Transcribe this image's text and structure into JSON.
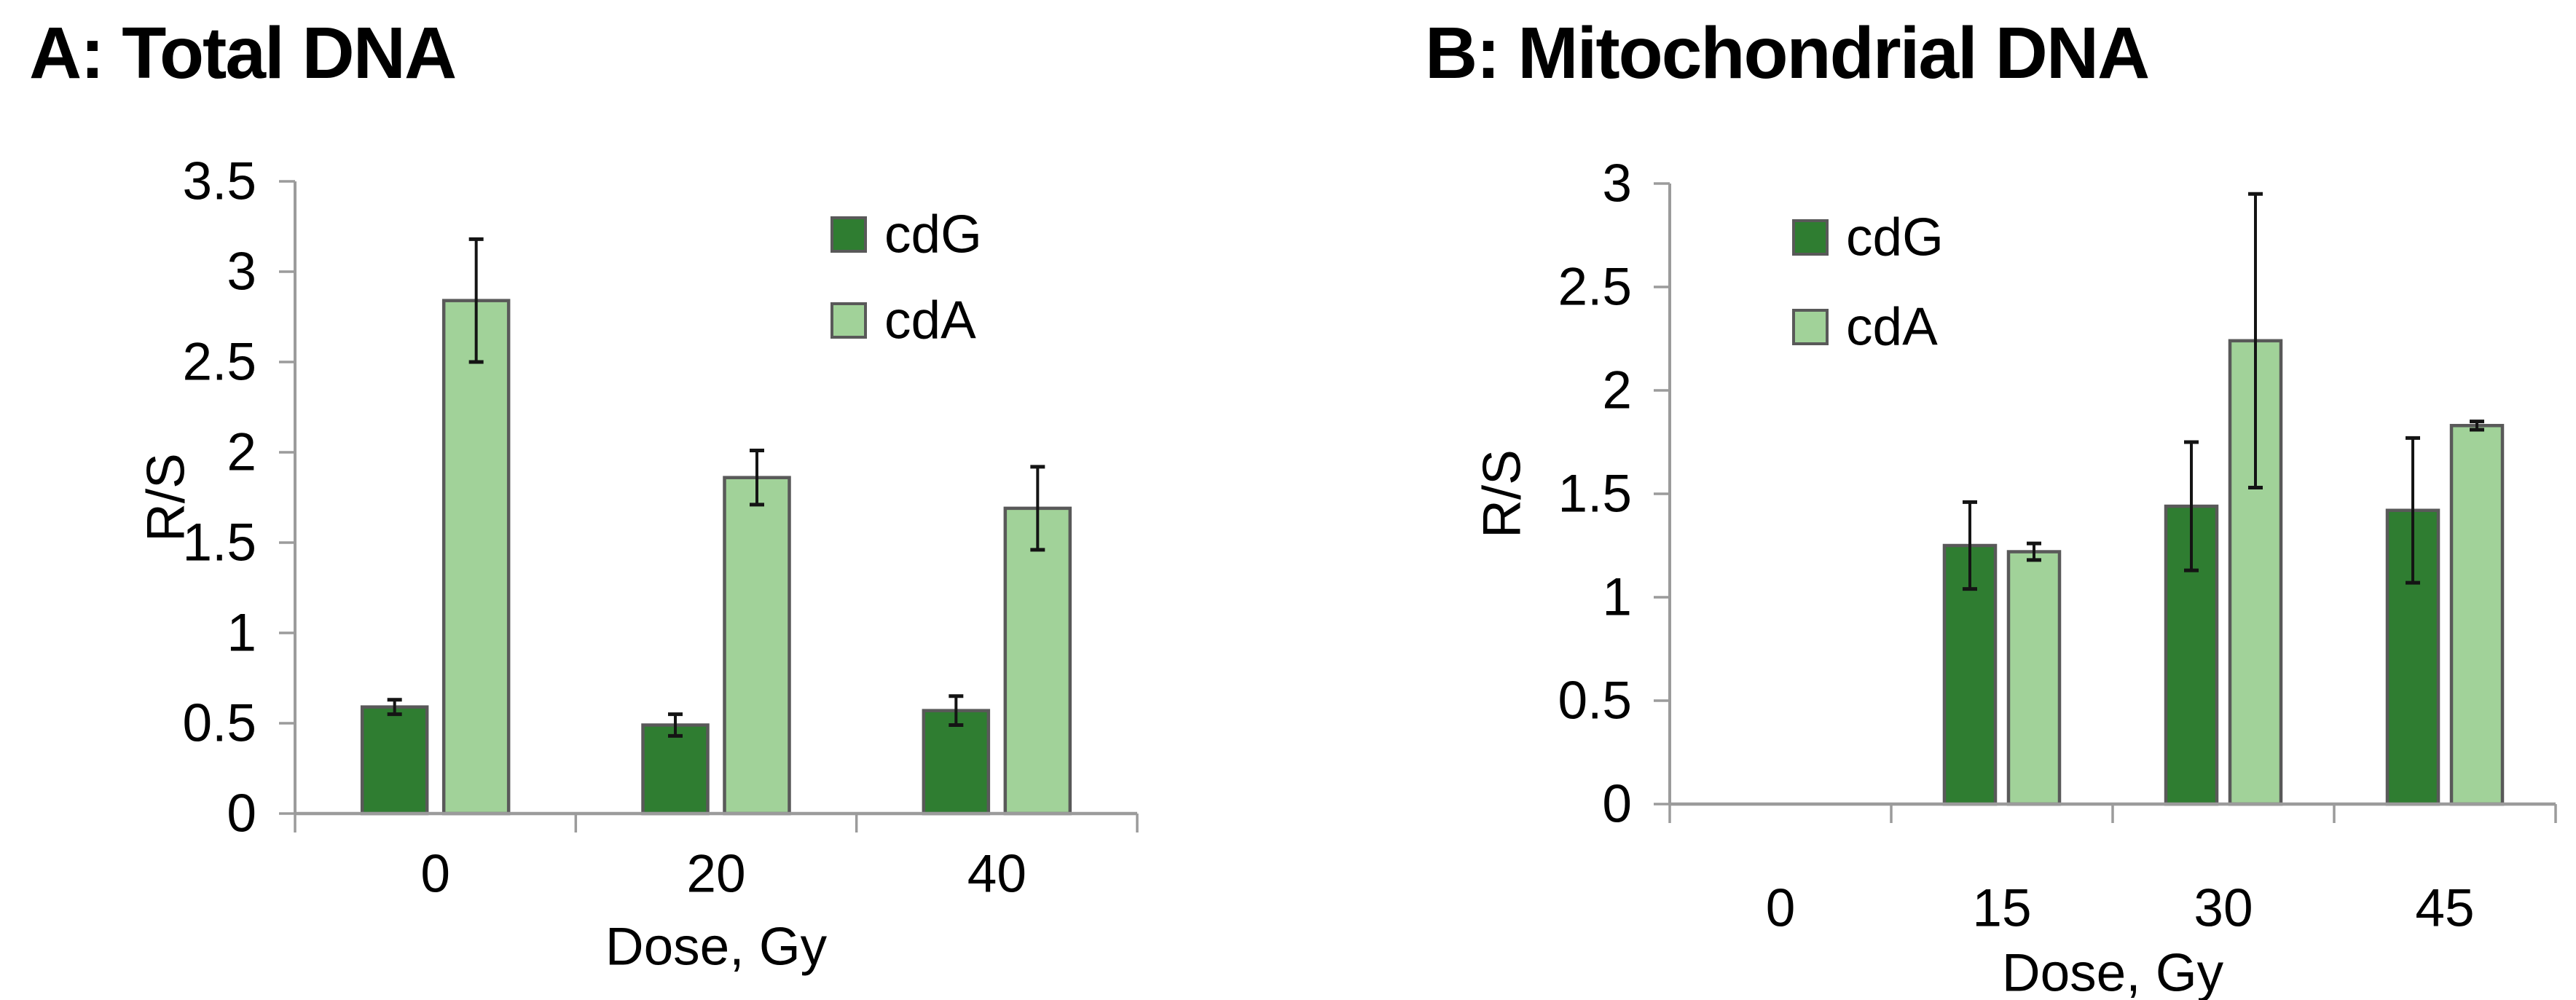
{
  "page": {
    "background": "#ffffff"
  },
  "colors": {
    "cdG_fill": "#2f7d31",
    "cdA_fill": "#a1d299",
    "bar_border": "#595959",
    "axis": "#9b9b9b",
    "error_bar": "#141414",
    "text": "#000000"
  },
  "chart_data": [
    {
      "type": "bar",
      "id": "total-dna",
      "panel": "A",
      "title": "A: Total DNA",
      "xlabel": "Dose, Gy",
      "ylabel": "R/S",
      "ylim": [
        0,
        3.5
      ],
      "ytick_step": 0.5,
      "ytick_labels": [
        "0",
        "0.5",
        "1",
        "1.5",
        "2",
        "2.5",
        "3",
        "3.5"
      ],
      "categories": [
        "0",
        "20",
        "40"
      ],
      "grid": false,
      "legend_position": "inside-upper-right",
      "legend_labels": [
        "cdG",
        "cdA"
      ],
      "series": [
        {
          "name": "cdG",
          "color": "#2f7d31",
          "values": [
            0.59,
            0.49,
            0.57
          ],
          "errors": [
            0.04,
            0.06,
            0.08
          ]
        },
        {
          "name": "cdA",
          "color": "#a1d299",
          "values": [
            2.84,
            1.86,
            1.69
          ],
          "errors": [
            0.34,
            0.15,
            0.23
          ]
        }
      ]
    },
    {
      "type": "bar",
      "id": "mito-dna",
      "panel": "B",
      "title": "B: Mitochondrial DNA",
      "xlabel": "Dose, Gy",
      "ylabel": "R/S",
      "ylim": [
        0,
        3
      ],
      "ytick_step": 0.5,
      "ytick_labels": [
        "0",
        "0.5",
        "1",
        "1.5",
        "2",
        "2.5",
        "3"
      ],
      "categories": [
        "0",
        "15",
        "30",
        "45"
      ],
      "grid": false,
      "legend_position": "inside-upper-left",
      "legend_labels": [
        "cdG",
        "cdA"
      ],
      "series": [
        {
          "name": "cdG",
          "color": "#2f7d31",
          "values": [
            null,
            1.25,
            1.44,
            1.42
          ],
          "errors": [
            null,
            0.21,
            0.31,
            0.35
          ]
        },
        {
          "name": "cdA",
          "color": "#a1d299",
          "values": [
            null,
            1.22,
            2.24,
            1.83
          ],
          "errors": [
            null,
            0.04,
            0.71,
            0.02
          ]
        }
      ]
    }
  ]
}
